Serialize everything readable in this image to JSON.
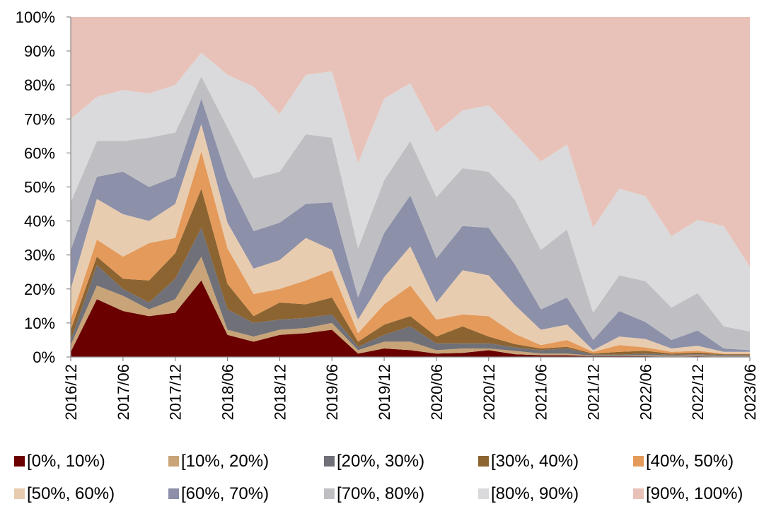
{
  "chart_data": {
    "type": "area",
    "stacked": true,
    "title": "",
    "xlabel": "",
    "ylabel": "",
    "ylim": [
      0,
      100
    ],
    "y_tick_labels": [
      "0%",
      "10%",
      "20%",
      "30%",
      "40%",
      "50%",
      "60%",
      "70%",
      "80%",
      "90%",
      "100%"
    ],
    "y_ticks": [
      0,
      10,
      20,
      30,
      40,
      50,
      60,
      70,
      80,
      90,
      100
    ],
    "x": [
      "2016/12",
      "2017/03",
      "2017/06",
      "2017/09",
      "2017/12",
      "2018/03",
      "2018/06",
      "2018/09",
      "2018/12",
      "2019/03",
      "2019/06",
      "2019/09",
      "2019/12",
      "2020/03",
      "2020/06",
      "2020/09",
      "2020/12",
      "2021/03",
      "2021/06",
      "2021/09",
      "2021/12",
      "2022/03",
      "2022/06",
      "2022/09",
      "2022/12",
      "2023/03",
      "2023/06"
    ],
    "x_tick_labels": [
      "2016/12",
      "2017/06",
      "2017/12",
      "2018/06",
      "2018/12",
      "2019/06",
      "2019/12",
      "2020/06",
      "2020/12",
      "2021/06",
      "2021/12",
      "2022/06",
      "2022/12",
      "2023/06"
    ],
    "x_tick_indices": [
      0,
      2,
      4,
      6,
      8,
      10,
      12,
      14,
      16,
      18,
      20,
      22,
      24,
      26
    ],
    "grid": false,
    "legend_position": "bottom",
    "series": [
      {
        "name": "[0%, 10%)",
        "color": "#6B0000",
        "values": [
          1.5,
          17.0,
          13.5,
          12.0,
          13.0,
          22.5,
          6.5,
          4.5,
          6.5,
          7.0,
          8.0,
          1.0,
          2.5,
          2.0,
          1.0,
          1.2,
          2.0,
          0.8,
          0.5,
          0.5,
          0.2,
          0.2,
          0.2,
          0.1,
          0.2,
          0.1,
          0.1
        ]
      },
      {
        "name": "[10%, 20%)",
        "color": "#C8A478",
        "values": [
          2.0,
          4.0,
          4.5,
          2.0,
          4.0,
          7.0,
          1.5,
          1.5,
          1.5,
          1.5,
          2.0,
          1.0,
          2.0,
          2.5,
          1.0,
          1.3,
          0.5,
          1.0,
          0.5,
          0.5,
          0.2,
          0.2,
          0.3,
          0.3,
          0.3,
          0.2,
          0.2
        ]
      },
      {
        "name": "[20%, 30%)",
        "color": "#707078",
        "values": [
          1.5,
          6.0,
          2.0,
          2.0,
          6.0,
          8.5,
          6.0,
          4.0,
          3.0,
          3.0,
          2.5,
          1.0,
          2.0,
          4.5,
          2.0,
          1.5,
          1.5,
          1.0,
          1.0,
          1.5,
          0.3,
          0.3,
          0.5,
          0.3,
          0.3,
          0.3,
          0.3
        ]
      },
      {
        "name": "[30%, 40%)",
        "color": "#8C6432",
        "values": [
          3.0,
          2.5,
          3.0,
          6.5,
          7.5,
          11.5,
          7.5,
          2.0,
          5.0,
          4.0,
          5.0,
          1.5,
          3.0,
          3.0,
          2.0,
          5.0,
          2.0,
          1.0,
          0.5,
          0.5,
          0.3,
          0.8,
          0.8,
          0.3,
          0.5,
          0.2,
          0.2
        ]
      },
      {
        "name": "[40%, 50%)",
        "color": "#E49A5A",
        "values": [
          3.0,
          5.0,
          6.5,
          11.0,
          4.5,
          11.0,
          10.5,
          6.5,
          4.0,
          7.0,
          8.0,
          2.5,
          6.0,
          9.0,
          5.0,
          3.5,
          6.0,
          3.0,
          1.0,
          2.0,
          0.5,
          2.0,
          1.0,
          0.5,
          0.5,
          0.2,
          0.2
        ]
      },
      {
        "name": "[50%, 60%)",
        "color": "#E8CCB0",
        "values": [
          9.0,
          12.0,
          12.5,
          6.5,
          10.0,
          8.0,
          7.5,
          7.5,
          8.5,
          12.5,
          6.0,
          4.0,
          8.0,
          11.5,
          5.0,
          13.0,
          12.0,
          8.5,
          4.5,
          4.5,
          0.5,
          2.5,
          2.5,
          1.0,
          1.5,
          0.5,
          0.5
        ]
      },
      {
        "name": "[60%, 70%)",
        "color": "#8C90A8",
        "values": [
          11.5,
          6.5,
          12.5,
          10.0,
          8.0,
          7.5,
          13.0,
          11.0,
          11.0,
          10.0,
          14.0,
          6.5,
          13.0,
          15.0,
          13.0,
          13.0,
          14.0,
          12.0,
          6.0,
          8.0,
          3.0,
          7.5,
          5.0,
          2.5,
          4.5,
          1.0,
          0.5
        ]
      },
      {
        "name": "[70%, 80%)",
        "color": "#BFBFC3",
        "values": [
          14.0,
          10.5,
          9.0,
          14.5,
          13.0,
          6.5,
          15.0,
          15.5,
          15.0,
          20.5,
          19.0,
          14.5,
          15.5,
          16.0,
          18.0,
          17.0,
          16.5,
          19.0,
          17.5,
          20.0,
          8.0,
          10.5,
          12.0,
          9.5,
          11.0,
          6.5,
          5.5
        ]
      },
      {
        "name": "[80%, 90%)",
        "color": "#DADADC",
        "values": [
          24.5,
          13.0,
          15.0,
          13.0,
          14.0,
          7.0,
          15.5,
          27.0,
          17.0,
          17.5,
          19.5,
          25.0,
          24.0,
          17.0,
          19.0,
          17.0,
          19.5,
          19.5,
          26.0,
          25.0,
          25.0,
          25.5,
          25.0,
          21.0,
          21.5,
          29.5,
          19.0
        ]
      },
      {
        "name": "[90%, 100%)",
        "color": "#E8C2B8",
        "values": [
          30.0,
          23.5,
          21.5,
          22.5,
          20.0,
          10.5,
          17.0,
          20.5,
          28.5,
          17.0,
          16.0,
          43.0,
          24.0,
          19.5,
          34.0,
          27.5,
          26.0,
          34.2,
          42.5,
          37.5,
          62.0,
          50.5,
          52.7,
          64.5,
          59.7,
          61.5,
          73.5
        ]
      }
    ]
  }
}
